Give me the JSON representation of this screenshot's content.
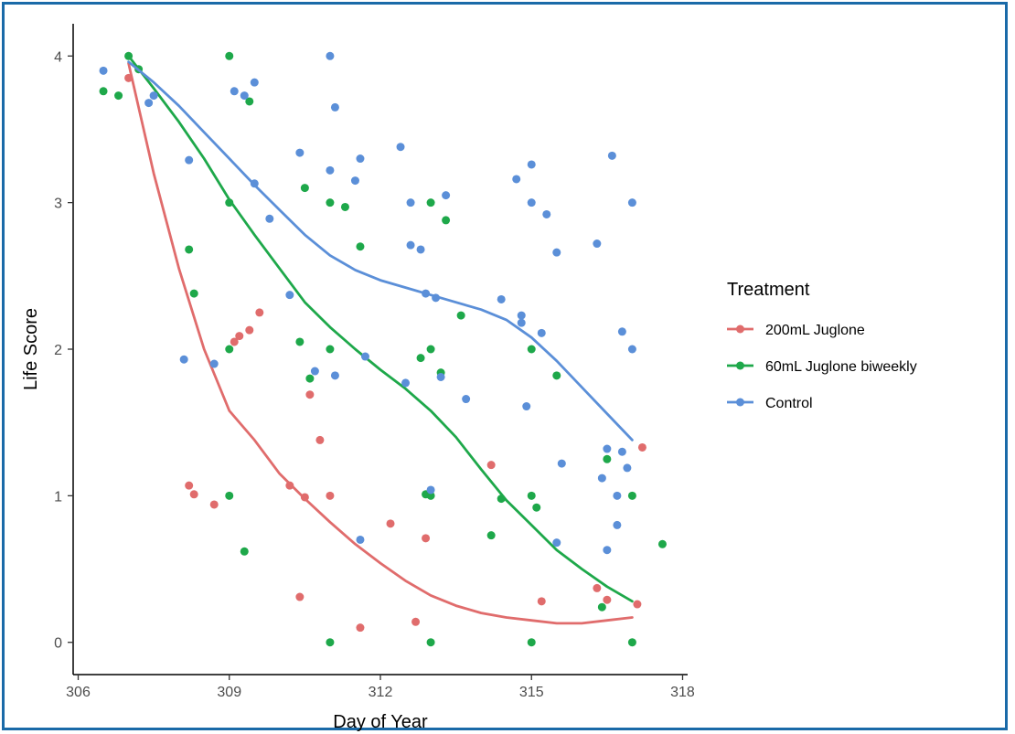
{
  "chart_data": {
    "type": "scatter",
    "title": "",
    "xlabel": "Day of Year",
    "ylabel": "Life Score",
    "xlim": [
      305.9,
      318.1
    ],
    "ylim": [
      -0.22,
      4.22
    ],
    "x_ticks": [
      306,
      309,
      312,
      315,
      318
    ],
    "y_ticks": [
      0,
      1,
      2,
      3,
      4
    ],
    "grid": false,
    "legend_position": "right",
    "legend_title": "Treatment",
    "series": [
      {
        "name": "200mL Juglone",
        "color": "#e06c6c",
        "points": [
          [
            307.0,
            3.85
          ],
          [
            308.2,
            1.07
          ],
          [
            308.3,
            1.01
          ],
          [
            308.7,
            0.94
          ],
          [
            309.1,
            2.05
          ],
          [
            309.2,
            2.09
          ],
          [
            309.4,
            2.13
          ],
          [
            309.6,
            2.25
          ],
          [
            310.2,
            1.07
          ],
          [
            310.5,
            0.99
          ],
          [
            310.6,
            1.69
          ],
          [
            310.8,
            1.38
          ],
          [
            310.4,
            0.31
          ],
          [
            311.0,
            1.0
          ],
          [
            311.6,
            0.1
          ],
          [
            312.2,
            0.81
          ],
          [
            312.7,
            0.14
          ],
          [
            312.9,
            0.71
          ],
          [
            314.2,
            1.21
          ],
          [
            315.2,
            0.28
          ],
          [
            316.3,
            0.37
          ],
          [
            316.5,
            0.29
          ],
          [
            317.1,
            0.26
          ],
          [
            317.2,
            1.33
          ]
        ],
        "trend": [
          [
            307.0,
            3.95
          ],
          [
            307.5,
            3.2
          ],
          [
            308.0,
            2.55
          ],
          [
            308.5,
            2.0
          ],
          [
            309.0,
            1.58
          ],
          [
            309.5,
            1.38
          ],
          [
            310.0,
            1.15
          ],
          [
            310.5,
            0.98
          ],
          [
            311.0,
            0.82
          ],
          [
            311.5,
            0.67
          ],
          [
            312.0,
            0.54
          ],
          [
            312.5,
            0.42
          ],
          [
            313.0,
            0.32
          ],
          [
            313.5,
            0.25
          ],
          [
            314.0,
            0.2
          ],
          [
            314.5,
            0.17
          ],
          [
            315.0,
            0.15
          ],
          [
            315.5,
            0.13
          ],
          [
            316.0,
            0.13
          ],
          [
            316.5,
            0.15
          ],
          [
            317.0,
            0.17
          ]
        ]
      },
      {
        "name": "60mL Juglone biweekly",
        "color": "#1ea84a",
        "points": [
          [
            306.5,
            3.76
          ],
          [
            306.8,
            3.73
          ],
          [
            307.0,
            4.0
          ],
          [
            307.2,
            3.91
          ],
          [
            308.2,
            2.68
          ],
          [
            308.3,
            2.38
          ],
          [
            309.0,
            4.0
          ],
          [
            309.0,
            3.0
          ],
          [
            309.0,
            2.0
          ],
          [
            309.0,
            1.0
          ],
          [
            309.3,
            0.62
          ],
          [
            309.4,
            3.69
          ],
          [
            310.4,
            2.05
          ],
          [
            310.5,
            3.1
          ],
          [
            310.6,
            1.8
          ],
          [
            311.0,
            3.0
          ],
          [
            311.0,
            2.0
          ],
          [
            311.0,
            0.0
          ],
          [
            311.3,
            2.97
          ],
          [
            311.6,
            2.7
          ],
          [
            312.8,
            1.94
          ],
          [
            312.9,
            1.01
          ],
          [
            313.0,
            3.0
          ],
          [
            313.0,
            2.0
          ],
          [
            313.0,
            1.0
          ],
          [
            313.0,
            0.0
          ],
          [
            313.2,
            1.84
          ],
          [
            313.3,
            2.88
          ],
          [
            313.6,
            2.23
          ],
          [
            314.2,
            0.73
          ],
          [
            314.4,
            0.98
          ],
          [
            315.0,
            2.0
          ],
          [
            315.0,
            1.0
          ],
          [
            315.0,
            0.0
          ],
          [
            315.1,
            0.92
          ],
          [
            315.5,
            1.82
          ],
          [
            316.4,
            0.24
          ],
          [
            316.5,
            1.25
          ],
          [
            317.0,
            1.0
          ],
          [
            317.0,
            0.0
          ],
          [
            317.6,
            0.67
          ]
        ],
        "trend": [
          [
            307.0,
            4.0
          ],
          [
            307.5,
            3.78
          ],
          [
            308.0,
            3.55
          ],
          [
            308.5,
            3.3
          ],
          [
            309.0,
            3.02
          ],
          [
            309.5,
            2.78
          ],
          [
            310.0,
            2.55
          ],
          [
            310.5,
            2.32
          ],
          [
            311.0,
            2.15
          ],
          [
            311.5,
            2.0
          ],
          [
            312.0,
            1.86
          ],
          [
            312.5,
            1.73
          ],
          [
            313.0,
            1.58
          ],
          [
            313.5,
            1.4
          ],
          [
            314.0,
            1.18
          ],
          [
            314.5,
            0.97
          ],
          [
            315.0,
            0.8
          ],
          [
            315.5,
            0.63
          ],
          [
            316.0,
            0.5
          ],
          [
            316.5,
            0.38
          ],
          [
            317.0,
            0.28
          ]
        ]
      },
      {
        "name": "Control",
        "color": "#5b8fd8",
        "points": [
          [
            306.5,
            3.9
          ],
          [
            307.4,
            3.68
          ],
          [
            307.5,
            3.73
          ],
          [
            308.2,
            3.29
          ],
          [
            308.1,
            1.93
          ],
          [
            308.7,
            1.9
          ],
          [
            309.1,
            3.76
          ],
          [
            309.3,
            3.73
          ],
          [
            309.5,
            3.82
          ],
          [
            309.5,
            3.13
          ],
          [
            309.8,
            2.89
          ],
          [
            310.2,
            2.37
          ],
          [
            310.4,
            3.34
          ],
          [
            310.7,
            1.85
          ],
          [
            311.0,
            4.0
          ],
          [
            311.1,
            3.65
          ],
          [
            311.0,
            3.22
          ],
          [
            311.1,
            1.82
          ],
          [
            311.6,
            3.3
          ],
          [
            311.5,
            3.15
          ],
          [
            311.7,
            1.95
          ],
          [
            311.6,
            0.7
          ],
          [
            312.4,
            3.38
          ],
          [
            312.6,
            3.0
          ],
          [
            312.6,
            2.71
          ],
          [
            312.8,
            2.68
          ],
          [
            312.5,
            1.77
          ],
          [
            312.9,
            2.38
          ],
          [
            313.1,
            2.35
          ],
          [
            313.2,
            1.81
          ],
          [
            313.3,
            3.05
          ],
          [
            313.0,
            1.04
          ],
          [
            313.7,
            1.66
          ],
          [
            314.4,
            2.34
          ],
          [
            314.7,
            3.16
          ],
          [
            314.8,
            2.23
          ],
          [
            314.8,
            2.18
          ],
          [
            314.9,
            1.61
          ],
          [
            315.0,
            3.26
          ],
          [
            315.0,
            3.0
          ],
          [
            315.2,
            2.11
          ],
          [
            315.3,
            2.92
          ],
          [
            315.5,
            2.66
          ],
          [
            315.6,
            1.22
          ],
          [
            315.5,
            0.68
          ],
          [
            316.3,
            2.72
          ],
          [
            316.6,
            3.32
          ],
          [
            316.5,
            1.32
          ],
          [
            316.4,
            1.12
          ],
          [
            316.5,
            0.63
          ],
          [
            316.8,
            2.12
          ],
          [
            316.8,
            1.3
          ],
          [
            317.0,
            3.0
          ],
          [
            317.0,
            2.0
          ],
          [
            316.9,
            1.19
          ],
          [
            316.7,
            0.8
          ],
          [
            316.7,
            1.0
          ]
        ],
        "trend": [
          [
            307.0,
            3.96
          ],
          [
            307.5,
            3.82
          ],
          [
            308.0,
            3.66
          ],
          [
            308.5,
            3.48
          ],
          [
            309.0,
            3.3
          ],
          [
            309.5,
            3.12
          ],
          [
            310.0,
            2.95
          ],
          [
            310.5,
            2.78
          ],
          [
            311.0,
            2.64
          ],
          [
            311.5,
            2.54
          ],
          [
            312.0,
            2.47
          ],
          [
            312.5,
            2.42
          ],
          [
            313.0,
            2.37
          ],
          [
            313.5,
            2.32
          ],
          [
            314.0,
            2.27
          ],
          [
            314.5,
            2.2
          ],
          [
            315.0,
            2.08
          ],
          [
            315.5,
            1.92
          ],
          [
            316.0,
            1.74
          ],
          [
            316.5,
            1.56
          ],
          [
            317.0,
            1.38
          ]
        ]
      }
    ]
  }
}
